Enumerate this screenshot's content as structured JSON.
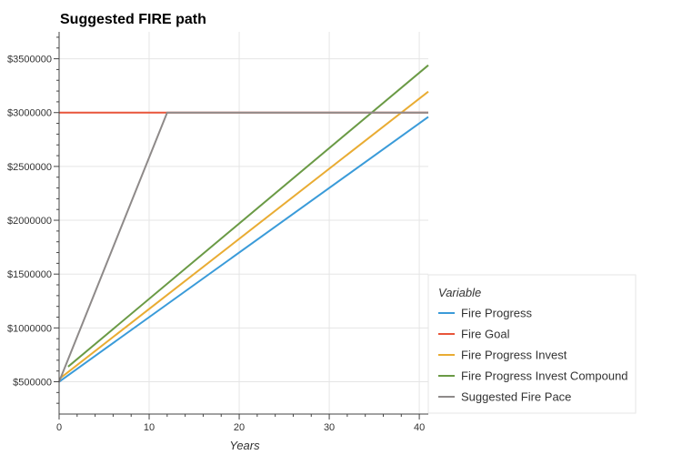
{
  "chart_data": {
    "type": "line",
    "title": "Suggested FIRE path",
    "xlabel": "Years",
    "ylabel": "",
    "xlim": [
      0,
      41
    ],
    "ylim": [
      200000,
      3750000
    ],
    "xticks": [
      0,
      10,
      20,
      30,
      40
    ],
    "yticks": [
      500000,
      1000000,
      1500000,
      2000000,
      2500000,
      3000000,
      3500000
    ],
    "ytick_labels": [
      "$500000",
      "$1000000",
      "$1500000",
      "$2000000",
      "$2500000",
      "$3000000",
      "$3500000"
    ],
    "grid": true,
    "legend": {
      "title": "Variable",
      "position": "bottom-right"
    },
    "series": [
      {
        "name": "Fire Progress",
        "color": "#3a9bd9",
        "x": [
          0,
          41
        ],
        "y": [
          500000,
          2960000
        ]
      },
      {
        "name": "Fire Goal",
        "color": "#e8553a",
        "x": [
          0,
          41
        ],
        "y": [
          3000000,
          3000000
        ]
      },
      {
        "name": "Fire Progress Invest",
        "color": "#e9ac33",
        "x": [
          0,
          41
        ],
        "y": [
          525000,
          3195000
        ]
      },
      {
        "name": "Fire Progress Invest Compound",
        "color": "#6a9a45",
        "x": [
          1,
          41
        ],
        "y": [
          640000,
          3440000
        ]
      },
      {
        "name": "Suggested Fire Pace",
        "color": "#8e8a89",
        "x": [
          0,
          12,
          41
        ],
        "y": [
          500000,
          3000000,
          3000000
        ]
      }
    ]
  }
}
